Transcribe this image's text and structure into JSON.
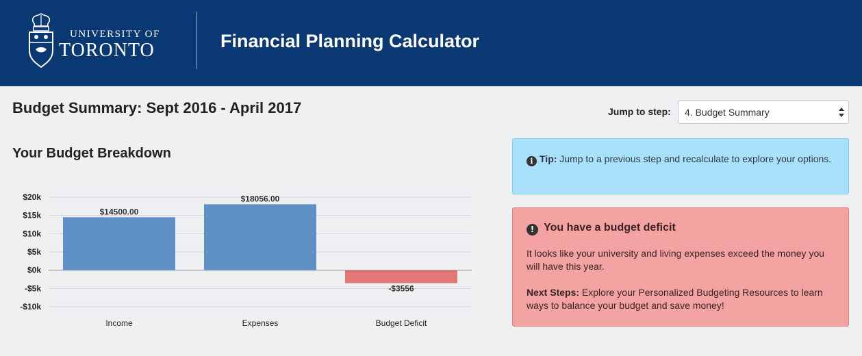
{
  "header": {
    "university_line1": "UNIVERSITY OF",
    "university_line2": "TORONTO",
    "app_title": "Financial Planning Calculator"
  },
  "page": {
    "title": "Budget Summary: Sept 2016 - April 2017",
    "jump_label": "Jump to step:",
    "jump_selected": "4. Budget Summary",
    "section_title": "Your Budget Breakdown"
  },
  "tip": {
    "label": "Tip:",
    "text": "Jump to a previous step and recalculate to explore your options."
  },
  "deficit": {
    "title": "You have a budget deficit",
    "text": "It looks like your university and living expenses exceed the money you will have this year.",
    "next_label": "Next Steps:",
    "next_text": "Explore your Personalized Budgeting Resources to learn ways to balance your budget and save money!"
  },
  "colors": {
    "header_bg": "#0a3872",
    "positive_bar": "#5e90c5",
    "negative_bar": "#e07878",
    "tip_bg": "#a9e0fb",
    "deficit_bg": "#f4a3a3"
  },
  "chart_data": {
    "type": "bar",
    "title": "Your Budget Breakdown",
    "categories": [
      "Income",
      "Expenses",
      "Budget Deficit"
    ],
    "values": [
      14500,
      18056,
      -3556
    ],
    "value_labels": [
      "$14500.00",
      "$18056.00",
      "-$3556"
    ],
    "yticks": [
      20000,
      15000,
      10000,
      5000,
      0,
      -5000,
      -10000
    ],
    "ytick_labels": [
      "$20k",
      "$15k",
      "$10k",
      "$5k",
      "$0k",
      "-$5k",
      "-$10k"
    ],
    "ylim": [
      -10000,
      20000
    ],
    "xlabel": "",
    "ylabel": "",
    "grid": true
  }
}
